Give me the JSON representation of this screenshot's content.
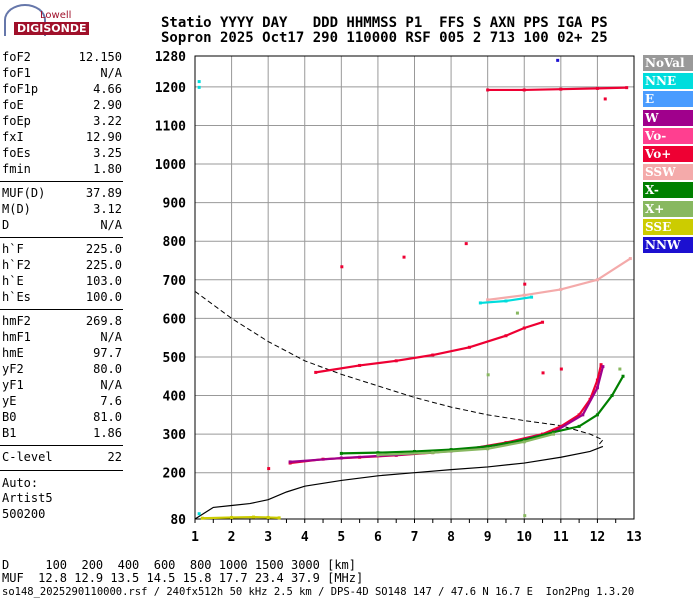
{
  "logo": {
    "top": "Lowell",
    "bottom": "DIGISONDE"
  },
  "header": {
    "line1": "Statio YYYY DAY   DDD HHMMSS P1  FFS S AXN PPS IGA PS",
    "line2": "Sopron 2025 Oct17 290 110000 RSF 005 2 713 100 02+ 25"
  },
  "params": [
    {
      "k": "foF2",
      "v": "12.150"
    },
    {
      "k": "foF1",
      "v": "N/A"
    },
    {
      "k": "foF1p",
      "v": "4.66"
    },
    {
      "k": "foE",
      "v": "2.90"
    },
    {
      "k": "foEp",
      "v": "3.22"
    },
    {
      "k": "fxI",
      "v": "12.90"
    },
    {
      "k": "foEs",
      "v": "3.25"
    },
    {
      "k": "fmin",
      "v": "1.80"
    },
    {
      "k": "MUF(D)",
      "v": "37.89"
    },
    {
      "k": "M(D)",
      "v": "3.12"
    },
    {
      "k": "D",
      "v": "N/A"
    },
    {
      "k": "h`F",
      "v": "225.0"
    },
    {
      "k": "h`F2",
      "v": "225.0"
    },
    {
      "k": "h`E",
      "v": "103.0"
    },
    {
      "k": "h`Es",
      "v": "100.0"
    },
    {
      "k": "hmF2",
      "v": "269.8"
    },
    {
      "k": "hmF1",
      "v": "N/A"
    },
    {
      "k": "hmE",
      "v": "97.7"
    },
    {
      "k": "yF2",
      "v": "80.0"
    },
    {
      "k": "yF1",
      "v": "N/A"
    },
    {
      "k": "yE",
      "v": "7.6"
    },
    {
      "k": "B0",
      "v": "81.0"
    },
    {
      "k": "B1",
      "v": "1.86"
    },
    {
      "k": "C-level",
      "v": "22"
    }
  ],
  "auto": {
    "l1": "Auto:",
    "l2": "Artist5",
    "l3": "500200"
  },
  "muf": {
    "line1": "D     100  200  400  600  800 1000 1500 3000 [km]",
    "line2": "MUF  12.8 12.9 13.5 14.5 15.8 17.7 23.4 37.9 [MHz]"
  },
  "footer": "so148_2025290110000.rsf / 240fx512h 50 kHz 2.5 km / DPS-4D SO148 147 / 47.6 N 16.7 E  Ion2Png 1.3.20",
  "legend": [
    {
      "label": "NoVal",
      "color": "#999999"
    },
    {
      "label": "NNE",
      "color": "#00dddd"
    },
    {
      "label": "E",
      "color": "#4a9cff"
    },
    {
      "label": "W",
      "color": "#a0008c"
    },
    {
      "label": "Vo-",
      "color": "#ff3f90"
    },
    {
      "label": "Vo+",
      "color": "#ee0033"
    },
    {
      "label": "SSW",
      "color": "#f4aaaa"
    },
    {
      "label": "X-",
      "color": "#008000"
    },
    {
      "label": "X+",
      "color": "#88b860"
    },
    {
      "label": "SSE",
      "color": "#cccc00"
    },
    {
      "label": "NNW",
      "color": "#1c10d0"
    }
  ],
  "chart_data": {
    "type": "scatter",
    "xlim": [
      1,
      13
    ],
    "ylim": [
      80,
      1280
    ],
    "xticks": [
      1,
      2,
      3,
      4,
      5,
      6,
      7,
      8,
      9,
      10,
      11,
      12,
      13
    ],
    "yticks": [
      80,
      200,
      300,
      400,
      500,
      600,
      700,
      800,
      900,
      1000,
      1100,
      1200,
      1280
    ],
    "grid": true,
    "series": [
      {
        "name": "Vo+",
        "color": "#ee0033",
        "x": [
          3.6,
          4.5,
          5.5,
          6.5,
          7.5,
          8.5,
          9.5,
          10.5,
          11.0,
          11.5,
          11.8,
          12.0,
          12.1
        ],
        "y": [
          225,
          235,
          240,
          245,
          252,
          262,
          278,
          300,
          320,
          350,
          390,
          440,
          480
        ]
      },
      {
        "name": "W",
        "color": "#a0008c",
        "x": [
          3.6,
          5.0,
          6.5,
          8.0,
          9.5,
          10.8,
          11.6,
          12.0,
          12.15
        ],
        "y": [
          228,
          238,
          246,
          256,
          275,
          305,
          350,
          420,
          475
        ]
      },
      {
        "name": "X-",
        "color": "#008000",
        "x": [
          5.0,
          6.0,
          7.0,
          8.0,
          9.0,
          10.0,
          10.8,
          11.5,
          12.0,
          12.4,
          12.7
        ],
        "y": [
          250,
          252,
          255,
          260,
          268,
          285,
          305,
          320,
          350,
          400,
          450
        ]
      },
      {
        "name": "X+",
        "color": "#88b860",
        "x": [
          6.0,
          7.5,
          9.0,
          10.0,
          10.8
        ],
        "y": [
          246,
          252,
          262,
          280,
          300
        ]
      },
      {
        "name": "Vo+ (multi-hop)",
        "color": "#ee0033",
        "x": [
          4.3,
          5.5,
          6.5,
          7.5,
          8.5,
          9.5,
          10.0,
          10.5
        ],
        "y": [
          460,
          478,
          490,
          505,
          525,
          555,
          575,
          590
        ]
      },
      {
        "name": "SSW",
        "color": "#f4aaaa",
        "x": [
          9.0,
          10.0,
          11.0,
          12.0,
          12.9
        ],
        "y": [
          648,
          660,
          675,
          700,
          755
        ]
      },
      {
        "name": "NNE",
        "color": "#00dddd",
        "x": [
          8.8,
          9.5,
          10.2
        ],
        "y": [
          640,
          645,
          655
        ]
      },
      {
        "name": "Vo+ (1200 km)",
        "color": "#ee0033",
        "x": [
          9.0,
          10.0,
          11.0,
          12.0,
          12.8
        ],
        "y": [
          1192,
          1192,
          1194,
          1196,
          1198
        ]
      },
      {
        "name": "SSE",
        "color": "#cccc00",
        "x": [
          1.2,
          2.0,
          2.6,
          3.0,
          3.3
        ],
        "y": [
          82,
          84,
          85,
          84,
          83
        ]
      }
    ],
    "profile": {
      "x": [
        1.0,
        1.5,
        2.0,
        2.5,
        3.0,
        3.5,
        4.0,
        5.0,
        6.0,
        7.0,
        8.0,
        9.0,
        10.0,
        11.0,
        11.8,
        12.15
      ],
      "y": [
        80,
        110,
        115,
        120,
        130,
        150,
        165,
        180,
        192,
        200,
        208,
        215,
        225,
        240,
        255,
        268
      ]
    },
    "profile_dashed": {
      "x": [
        1.0,
        2.0,
        3.0,
        4.0,
        5.0,
        6.0,
        7.0,
        8.0,
        9.0,
        10.0,
        11.0,
        11.8,
        12.15,
        12.0
      ],
      "y": [
        670,
        600,
        540,
        490,
        455,
        425,
        395,
        370,
        350,
        335,
        322,
        300,
        285,
        268
      ]
    }
  }
}
